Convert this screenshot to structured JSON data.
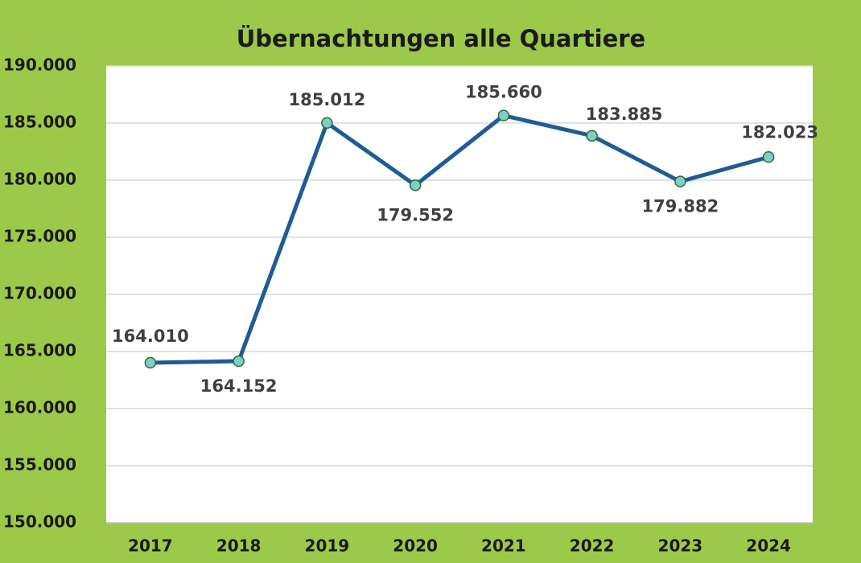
{
  "chart_data": {
    "type": "line",
    "title": "Übernachtungen alle Quartiere",
    "categories": [
      "2017",
      "2018",
      "2019",
      "2020",
      "2021",
      "2022",
      "2023",
      "2024"
    ],
    "series": [
      {
        "name": "Übernachtungen",
        "color": "#1f5b96",
        "values": [
          164010,
          164152,
          185012,
          179552,
          185660,
          183885,
          179882,
          182023
        ],
        "value_labels": [
          "164.010",
          "164.152",
          "185.012",
          "179.552",
          "185.660",
          "183.885",
          "179.882",
          "182.023"
        ]
      }
    ],
    "ylim": [
      150000,
      190000
    ],
    "yticks": [
      {
        "value": 150000,
        "label": "150.000"
      },
      {
        "value": 155000,
        "label": "155.000"
      },
      {
        "value": 160000,
        "label": "160.000"
      },
      {
        "value": 165000,
        "label": "165.000"
      },
      {
        "value": 170000,
        "label": "170.000"
      },
      {
        "value": 175000,
        "label": "175.000"
      },
      {
        "value": 180000,
        "label": "180.000"
      },
      {
        "value": 185000,
        "label": "185.000"
      },
      {
        "value": 190000,
        "label": "190.000"
      }
    ],
    "grid": true
  }
}
